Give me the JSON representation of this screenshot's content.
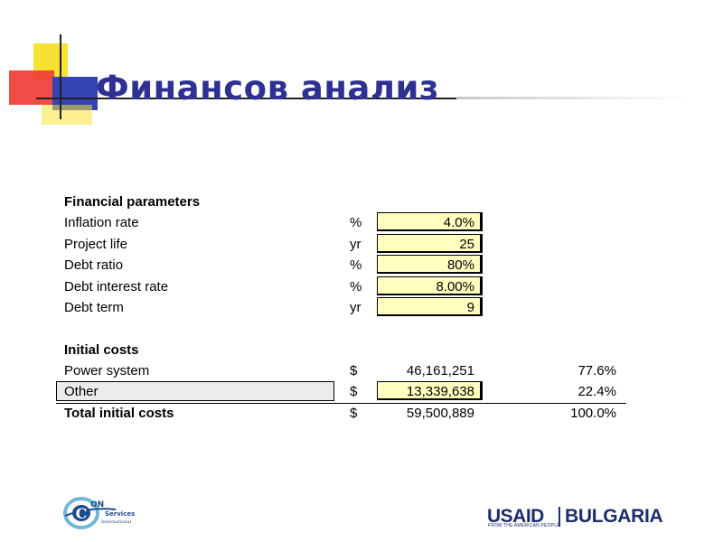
{
  "title": "Финансов анализ",
  "financial": {
    "heading": "Financial parameters",
    "rows": [
      {
        "label": "Inflation rate",
        "unit": "%",
        "value": "4.0%"
      },
      {
        "label": "Project life",
        "unit": "yr",
        "value": "25"
      },
      {
        "label": "Debt ratio",
        "unit": "%",
        "value": "80%"
      },
      {
        "label": "Debt interest rate",
        "unit": "%",
        "value": "8.00%"
      },
      {
        "label": "Debt term",
        "unit": "yr",
        "value": "9"
      }
    ]
  },
  "costs": {
    "heading": "Initial costs",
    "rows": [
      {
        "label": "Power system",
        "unit": "$",
        "value": "46,161,251",
        "pct": "77.6%"
      },
      {
        "label": "Other",
        "unit": "$",
        "value": "13,339,638",
        "pct": "22.4%"
      }
    ],
    "total": {
      "label": "Total initial costs",
      "unit": "$",
      "value": "59,500,889",
      "pct": "100.0%"
    }
  },
  "logos": {
    "encon_c": "C",
    "encon_on": "ON",
    "encon_services": "Services",
    "encon_international": "International",
    "usaid": "USAID",
    "usaid_sub": "FROM THE AMERICAN PEOPLE",
    "bulgaria": "BULGARIA"
  },
  "colors": {
    "title": "#2e3192",
    "input_fill": "#ffffc0",
    "deco_yellow": "#f7e234",
    "deco_red": "#ee3a33",
    "deco_blue": "#3444b0"
  }
}
